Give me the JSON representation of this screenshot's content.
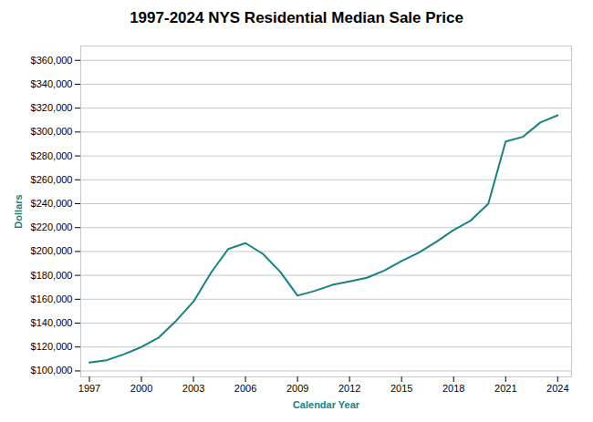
{
  "chart_data": {
    "type": "line",
    "title": "1997-2024 NYS Residential Median Sale Price",
    "x": [
      1997,
      1998,
      1999,
      2000,
      2001,
      2002,
      2003,
      2004,
      2005,
      2006,
      2007,
      2008,
      2009,
      2010,
      2011,
      2012,
      2013,
      2014,
      2015,
      2016,
      2017,
      2018,
      2019,
      2020,
      2021,
      2022,
      2023,
      2024
    ],
    "values": [
      107000,
      109000,
      114000,
      120000,
      128000,
      142000,
      158000,
      182000,
      202000,
      207000,
      198000,
      183000,
      163000,
      167000,
      172000,
      175000,
      178000,
      184000,
      192000,
      199000,
      208000,
      218000,
      226000,
      240000,
      292000,
      296000,
      308000,
      314000
    ],
    "color": "#1a8080",
    "xlabel": "Calendar Year",
    "ylabel": "Dollars",
    "xlim": [
      1996.5,
      2024.8
    ],
    "ylim": [
      95000,
      372000
    ],
    "xticks": [
      1997,
      2000,
      2003,
      2006,
      2009,
      2012,
      2015,
      2018,
      2021,
      2024
    ],
    "yticks": [
      {
        "value": 100000,
        "label": "$100,000"
      },
      {
        "value": 120000,
        "label": "$120,000"
      },
      {
        "value": 140000,
        "label": "$140,000"
      },
      {
        "value": 160000,
        "label": "$160,000"
      },
      {
        "value": 180000,
        "label": "$180,000"
      },
      {
        "value": 200000,
        "label": "$200,000"
      },
      {
        "value": 220000,
        "label": "$220,000"
      },
      {
        "value": 240000,
        "label": "$240,000"
      },
      {
        "value": 260000,
        "label": "$260,000"
      },
      {
        "value": 280000,
        "label": "$280,000"
      },
      {
        "value": 300000,
        "label": "$300,000"
      },
      {
        "value": 320000,
        "label": "$320,000"
      },
      {
        "value": 340000,
        "label": "$340,000"
      },
      {
        "value": 360000,
        "label": "$360,000"
      }
    ],
    "grid": true
  }
}
